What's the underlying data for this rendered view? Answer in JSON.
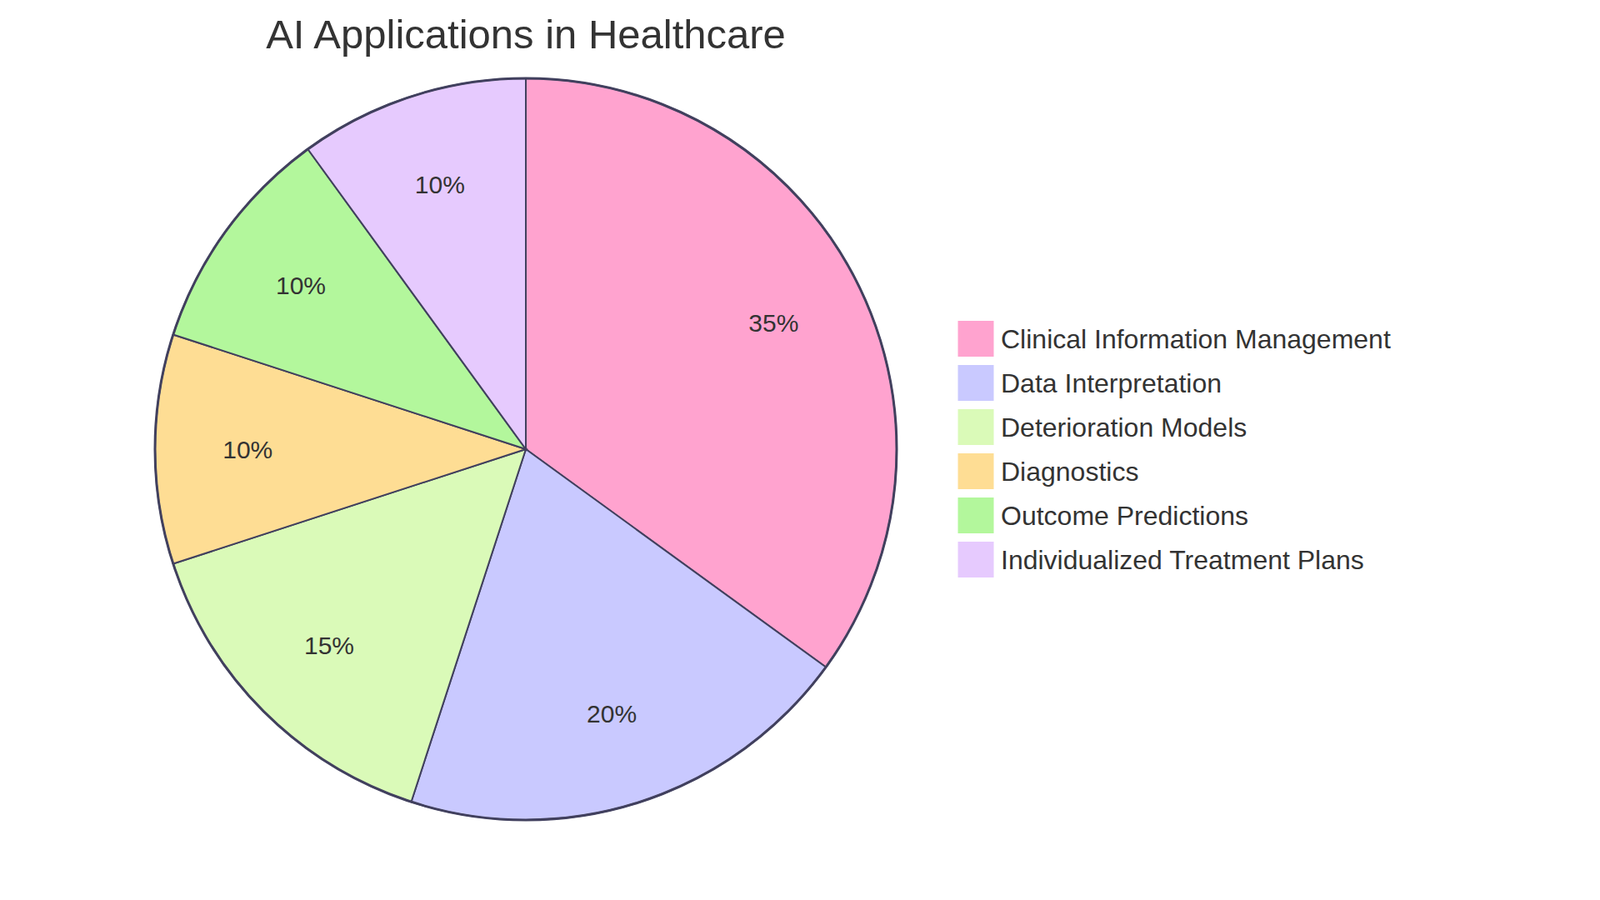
{
  "chart_data": {
    "type": "pie",
    "title": "AI Applications in Healthcare",
    "categories": [
      "Clinical Information Management",
      "Data Interpretation",
      "Deterioration Models",
      "Diagnostics",
      "Outcome Predictions",
      "Individualized Treatment Plans"
    ],
    "values": [
      35,
      20,
      15,
      10,
      10,
      10
    ],
    "value_labels": [
      "35%",
      "20%",
      "15%",
      "10%",
      "10%",
      "10%"
    ],
    "colors": [
      "#ffa3cf",
      "#c9c9ff",
      "#dafab8",
      "#fedd94",
      "#b3f79c",
      "#e6cafe"
    ],
    "data_labels": true,
    "legend": "right"
  }
}
